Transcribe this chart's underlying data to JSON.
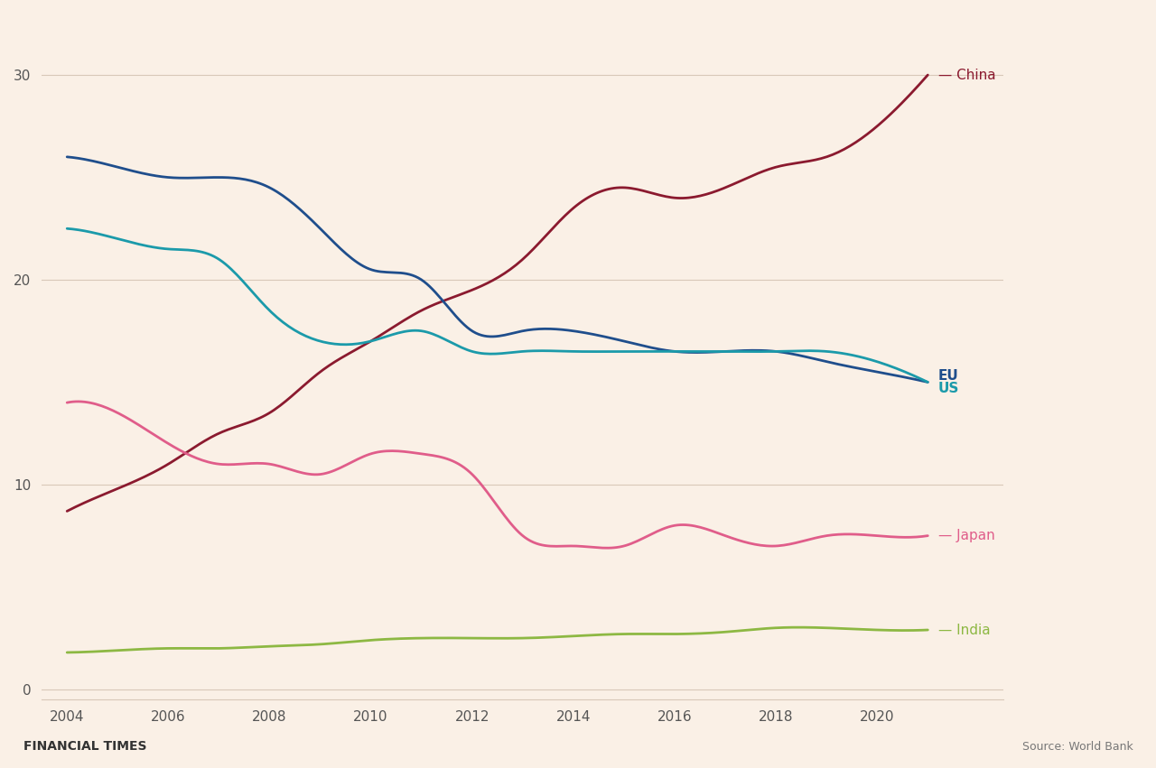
{
  "years": [
    2004,
    2005,
    2006,
    2007,
    2008,
    2009,
    2010,
    2011,
    2012,
    2013,
    2014,
    2015,
    2016,
    2017,
    2018,
    2019,
    2020,
    2021
  ],
  "china": [
    8.7,
    9.8,
    11.0,
    12.5,
    13.5,
    15.5,
    17.0,
    18.5,
    19.5,
    21.0,
    23.5,
    24.5,
    24.0,
    24.5,
    25.5,
    26.0,
    27.5,
    30.0
  ],
  "eu": [
    26.0,
    25.5,
    25.0,
    25.0,
    24.5,
    22.5,
    20.5,
    20.0,
    17.5,
    17.5,
    17.5,
    17.0,
    16.5,
    16.5,
    16.5,
    16.0,
    15.5,
    15.0
  ],
  "us": [
    22.5,
    22.0,
    21.5,
    21.0,
    18.5,
    17.0,
    17.0,
    17.5,
    16.5,
    16.5,
    16.5,
    16.5,
    16.5,
    16.5,
    16.5,
    16.5,
    16.0,
    15.0
  ],
  "japan": [
    14.0,
    13.5,
    12.0,
    11.0,
    11.0,
    10.5,
    11.5,
    11.5,
    10.5,
    7.5,
    7.0,
    7.0,
    8.0,
    7.5,
    7.0,
    7.5,
    7.5,
    7.5
  ],
  "india": [
    1.8,
    1.9,
    2.0,
    2.0,
    2.1,
    2.2,
    2.4,
    2.5,
    2.5,
    2.5,
    2.6,
    2.7,
    2.7,
    2.8,
    3.0,
    3.0,
    2.9,
    2.9
  ],
  "china_color": "#8B1A2F",
  "eu_color": "#1F4E8C",
  "us_color": "#1B9AAA",
  "japan_color": "#E05D8A",
  "india_color": "#8DB843",
  "background_color": "#FAF0E6",
  "grid_color": "#D8C8B8",
  "yticks": [
    0,
    10,
    20,
    30
  ],
  "xticks": [
    2004,
    2006,
    2008,
    2010,
    2012,
    2014,
    2016,
    2018,
    2020
  ],
  "ylim": [
    -0.5,
    33
  ],
  "xlim": [
    2003.5,
    2022.5
  ],
  "ft_label": "FINANCIAL TIMES",
  "source_label": "Source: World Bank",
  "line_width": 2.0
}
